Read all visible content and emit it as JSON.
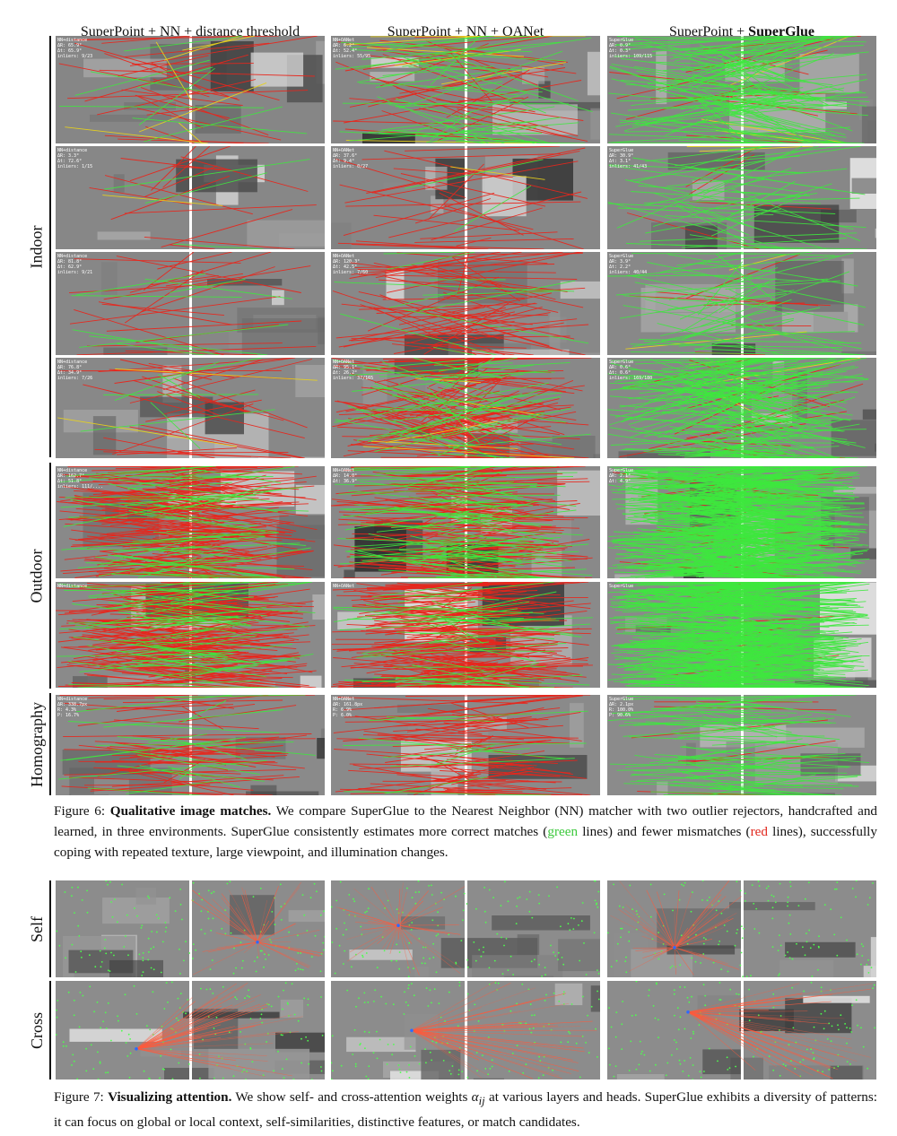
{
  "columns": [
    {
      "prefix": "SuperPoint + NN + distance threshold",
      "bold": ""
    },
    {
      "prefix": "SuperPoint + NN + OANet",
      "bold": ""
    },
    {
      "prefix": "SuperPoint + ",
      "bold": "SuperGlue"
    }
  ],
  "groups": {
    "indoor": "Indoor",
    "outdoor": "Outdoor",
    "homography": "Homography",
    "self": "Self",
    "cross": "Cross"
  },
  "overlays": {
    "indoor_1": [
      [
        "NN+distance",
        "ΔR: 65.9°",
        "Δt: 65.9°",
        "inliers: 9/23"
      ],
      [
        "NN+OANet",
        "ΔR: 6.2°",
        "Δt: 52.4°",
        "inliers: 55/95"
      ],
      [
        "SuperGlue",
        "ΔR: 0.9°",
        "Δt: 0.3°",
        "inliers: 109/115"
      ]
    ],
    "indoor_2": [
      [
        "NN+distance",
        "ΔR: 3.3°",
        "Δt: 72.6°",
        "inliers: 1/15"
      ],
      [
        "NN+OANet",
        "ΔR: 37.6°",
        "Δt: 9.4°",
        "inliers: 0/27"
      ],
      [
        "SuperGlue",
        "ΔR: 30.9°",
        "Δt: 3.1°",
        "inliers: 41/43"
      ]
    ],
    "indoor_3": [
      [
        "NN+distance",
        "ΔR: 81.8°",
        "Δt: 62.9°",
        "inliers: 9/21"
      ],
      [
        "NN+OANet",
        "ΔR: 120.3°",
        "Δt: 42.5°",
        "inliers: 7/60"
      ],
      [
        "SuperGlue",
        "ΔR: 3.9°",
        "Δt: 2.2°",
        "inliers: 40/44"
      ]
    ],
    "indoor_4": [
      [
        "NN+distance",
        "ΔR: 76.8°",
        "Δt: 34.9°",
        "inliers: 7/26"
      ],
      [
        "NN+OANet",
        "ΔR: 95.1°",
        "Δt: 26.2°",
        "inliers: 37/165"
      ],
      [
        "SuperGlue",
        "ΔR: 0.6°",
        "Δt: 0.6°",
        "inliers: 169/180"
      ]
    ],
    "outdoor_1": [
      [
        "NN+distance",
        "ΔR: 162.7°",
        "Δt: 51.8°",
        "inliers: 111/...."
      ],
      [
        "NN+OANet",
        "ΔR: 14.0°",
        "Δt: 36.9°",
        ""
      ],
      [
        "SuperGlue",
        "ΔR: 2.1°",
        "Δt: 4.9°",
        ""
      ]
    ],
    "outdoor_2": [
      [
        "NN+distance",
        "",
        "",
        ""
      ],
      [
        "NN+OANet",
        "",
        "",
        ""
      ],
      [
        "SuperGlue",
        "",
        "",
        ""
      ]
    ],
    "homography_1": [
      [
        "NN+distance",
        "ΔR: 338.7px",
        "R: 4.3%",
        "P: 16.7%"
      ],
      [
        "NN+OANet",
        "ΔR: 161.8px",
        "R: 6.9%",
        "P: 6.0%"
      ],
      [
        "SuperGlue",
        "ΔR: 2.1px",
        "R: 100.0%",
        "P: 90.6%"
      ]
    ]
  },
  "captions": {
    "fig6": {
      "label": "Figure 6: ",
      "bold": "Qualitative image matches.",
      "text_a": " We compare SuperGlue to the Nearest Neighbor (NN) matcher with two outlier rejectors, handcrafted and learned, in three environments. SuperGlue consistently estimates more correct matches (",
      "green": "green",
      "text_b": " lines) and fewer mismatches (",
      "red": "red",
      "text_c": " lines), successfully coping with repeated texture, large viewpoint, and illumination changes."
    },
    "fig7": {
      "label": "Figure 7: ",
      "bold": "Visualizing attention.",
      "text_a": " We show self- and cross-attention weights ",
      "math": "α",
      "math_sub": "ij",
      "text_b": " at various layers and heads. SuperGlue exhibits a diversity of patterns: it can focus on global or local context, self-similarities, distinctive features, or match candidates."
    }
  },
  "colors": {
    "correct_match": "#3ee83e",
    "wrong_match": "#e8261c",
    "borderline_match": "#e8d21c",
    "attention_line": "#ff5a3c",
    "keypoint": "#4dff4d"
  }
}
